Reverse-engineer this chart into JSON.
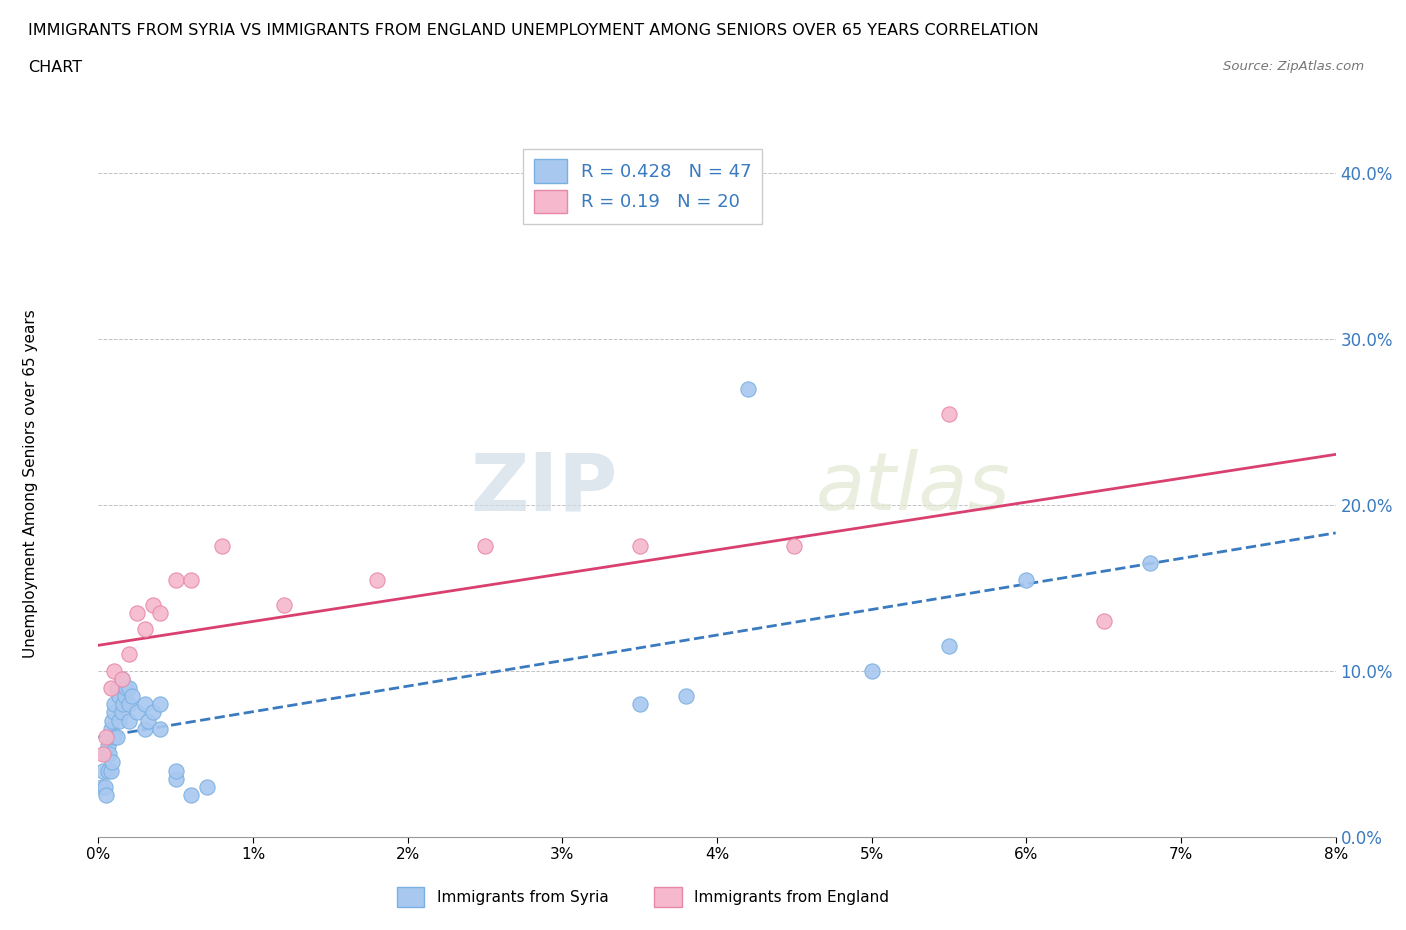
{
  "title_line1": "IMMIGRANTS FROM SYRIA VS IMMIGRANTS FROM ENGLAND UNEMPLOYMENT AMONG SENIORS OVER 65 YEARS CORRELATION",
  "title_line2": "CHART",
  "source": "Source: ZipAtlas.com",
  "ylabel": "Unemployment Among Seniors over 65 years",
  "xlim": [
    0.0,
    0.08
  ],
  "ylim": [
    0.0,
    0.42
  ],
  "syria_color": "#a8c8f0",
  "england_color": "#f5b8cc",
  "syria_edge": "#7ab0e0",
  "england_edge": "#e888a8",
  "trend_color_syria": "#3a7abf",
  "trend_color_england": "#d94070",
  "watermark_zip": "ZIP",
  "watermark_atlas": "atlas",
  "syria_R": 0.428,
  "syria_N": 47,
  "england_R": 0.19,
  "england_N": 20,
  "syria_x": [
    0.0002,
    0.0003,
    0.0004,
    0.0005,
    0.0005,
    0.0006,
    0.0006,
    0.0007,
    0.0007,
    0.0008,
    0.0008,
    0.0009,
    0.0009,
    0.001,
    0.001,
    0.001,
    0.0012,
    0.0012,
    0.0013,
    0.0013,
    0.0015,
    0.0015,
    0.0016,
    0.0017,
    0.0018,
    0.002,
    0.002,
    0.002,
    0.0022,
    0.0025,
    0.003,
    0.003,
    0.0032,
    0.0035,
    0.004,
    0.004,
    0.005,
    0.005,
    0.006,
    0.007,
    0.035,
    0.038,
    0.042,
    0.05,
    0.055,
    0.06,
    0.068
  ],
  "syria_y": [
    0.03,
    0.04,
    0.03,
    0.025,
    0.05,
    0.04,
    0.055,
    0.05,
    0.06,
    0.04,
    0.065,
    0.045,
    0.07,
    0.06,
    0.075,
    0.08,
    0.06,
    0.09,
    0.07,
    0.085,
    0.075,
    0.095,
    0.08,
    0.085,
    0.09,
    0.07,
    0.08,
    0.09,
    0.085,
    0.075,
    0.065,
    0.08,
    0.07,
    0.075,
    0.065,
    0.08,
    0.035,
    0.04,
    0.025,
    0.03,
    0.08,
    0.085,
    0.27,
    0.1,
    0.115,
    0.155,
    0.165
  ],
  "england_x": [
    0.0003,
    0.0005,
    0.0008,
    0.001,
    0.0015,
    0.002,
    0.0025,
    0.003,
    0.0035,
    0.004,
    0.005,
    0.006,
    0.008,
    0.012,
    0.018,
    0.025,
    0.035,
    0.045,
    0.055,
    0.065
  ],
  "england_y": [
    0.05,
    0.06,
    0.09,
    0.1,
    0.095,
    0.11,
    0.135,
    0.125,
    0.14,
    0.135,
    0.155,
    0.155,
    0.175,
    0.14,
    0.155,
    0.175,
    0.175,
    0.175,
    0.255,
    0.13
  ]
}
